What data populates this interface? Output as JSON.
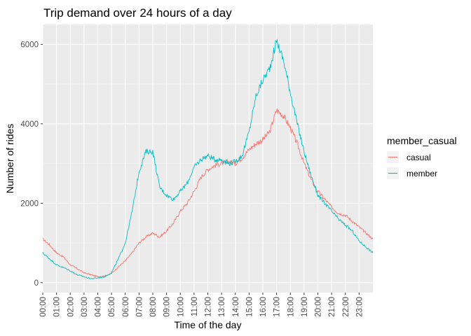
{
  "chart_data": {
    "type": "line",
    "title": "Trip demand over 24 hours of a day",
    "xlabel": "Time of the day",
    "ylabel": "Number of rides",
    "x": [
      "00:00",
      "00:30",
      "01:00",
      "01:30",
      "02:00",
      "02:30",
      "03:00",
      "03:30",
      "04:00",
      "04:30",
      "05:00",
      "05:30",
      "06:00",
      "06:30",
      "07:00",
      "07:30",
      "08:00",
      "08:30",
      "09:00",
      "09:30",
      "10:00",
      "10:30",
      "11:00",
      "11:30",
      "12:00",
      "12:30",
      "13:00",
      "13:30",
      "14:00",
      "14:30",
      "15:00",
      "15:30",
      "16:00",
      "16:30",
      "17:00",
      "17:30",
      "18:00",
      "18:30",
      "19:00",
      "19:30",
      "20:00",
      "20:30",
      "21:00",
      "21:30",
      "22:00",
      "22:30",
      "23:00",
      "23:30",
      "24:00"
    ],
    "x_tick_labels": [
      "00:00",
      "01:00",
      "02:00",
      "03:00",
      "04:00",
      "05:00",
      "06:00",
      "07:00",
      "08:00",
      "09:00",
      "10:00",
      "11:00",
      "12:00",
      "13:00",
      "14:00",
      "15:00",
      "16:00",
      "17:00",
      "18:00",
      "19:00",
      "20:00",
      "21:00",
      "22:00",
      "23:00"
    ],
    "y_ticks": [
      0,
      2000,
      4000,
      6000
    ],
    "ylim": [
      -250,
      6500
    ],
    "grid": true,
    "legend": {
      "title": "member_casual",
      "placement": "right"
    },
    "series": [
      {
        "name": "casual",
        "color": "#F8766D",
        "values": [
          1100,
          950,
          750,
          650,
          450,
          350,
          250,
          200,
          150,
          170,
          230,
          400,
          550,
          750,
          1000,
          1150,
          1250,
          1150,
          1300,
          1500,
          1800,
          2000,
          2300,
          2650,
          2850,
          2950,
          3000,
          3050,
          3000,
          3150,
          3350,
          3500,
          3600,
          3800,
          4350,
          4200,
          3900,
          3500,
          3000,
          2600,
          2300,
          2100,
          1900,
          1750,
          1700,
          1550,
          1400,
          1250,
          1100
        ]
      },
      {
        "name": "member",
        "color": "#00BFC4",
        "values": [
          750,
          600,
          450,
          380,
          300,
          200,
          150,
          100,
          120,
          150,
          250,
          600,
          1000,
          1800,
          2800,
          3300,
          3300,
          2400,
          2200,
          2100,
          2300,
          2500,
          2900,
          3100,
          3200,
          3100,
          3100,
          3000,
          3050,
          3200,
          3800,
          4700,
          5100,
          5400,
          6100,
          5600,
          4800,
          4000,
          3300,
          2700,
          2200,
          2000,
          1800,
          1600,
          1450,
          1300,
          1050,
          900,
          750
        ]
      }
    ]
  }
}
